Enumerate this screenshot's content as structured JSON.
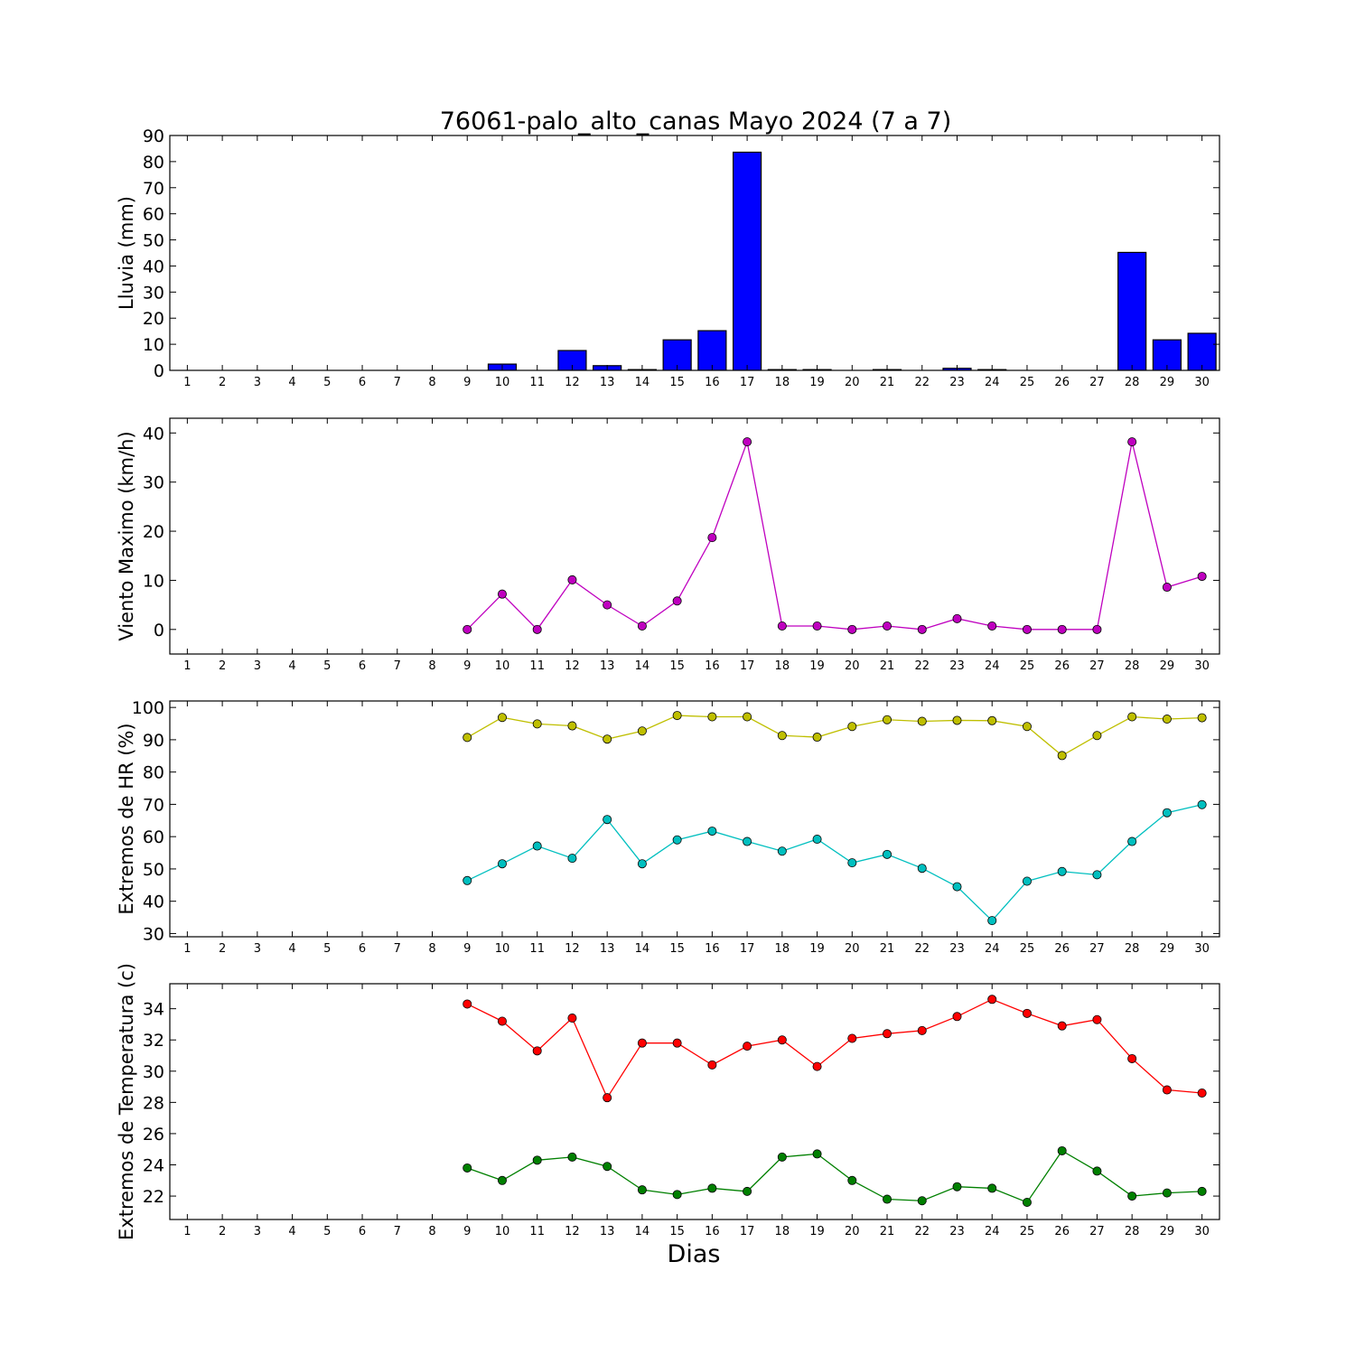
{
  "title": "76061-palo_alto_canas Mayo 2024  (7 a 7)",
  "xlabel": "Dias",
  "days": [
    1,
    2,
    3,
    4,
    5,
    6,
    7,
    8,
    9,
    10,
    11,
    12,
    13,
    14,
    15,
    16,
    17,
    18,
    19,
    20,
    21,
    22,
    23,
    24,
    25,
    26,
    27,
    28,
    29,
    30
  ],
  "chart_data": [
    {
      "type": "bar",
      "ylabel": "Lluvia (mm)",
      "ylim": [
        0,
        90
      ],
      "yticks": [
        0,
        10,
        20,
        30,
        40,
        50,
        60,
        70,
        80,
        90
      ],
      "x": [
        9,
        10,
        11,
        12,
        13,
        14,
        15,
        16,
        17,
        18,
        19,
        20,
        21,
        22,
        23,
        24,
        25,
        26,
        27,
        28,
        29,
        30
      ],
      "series": [
        {
          "color": "#0000ff",
          "values": [
            0.0,
            2.4,
            0.0,
            7.6,
            1.8,
            0.3,
            11.7,
            15.2,
            83.6,
            0.3,
            0.3,
            0.0,
            0.3,
            0.0,
            0.8,
            0.3,
            0.0,
            0.0,
            0.0,
            45.2,
            11.7,
            14.2
          ]
        }
      ]
    },
    {
      "type": "line",
      "ylabel": "Viento Maximo (km/h)",
      "ylim": [
        -5,
        43
      ],
      "yticks": [
        0,
        10,
        20,
        30,
        40
      ],
      "x": [
        9,
        10,
        11,
        12,
        13,
        14,
        15,
        16,
        17,
        18,
        19,
        20,
        21,
        22,
        23,
        24,
        25,
        26,
        27,
        28,
        29,
        30
      ],
      "series": [
        {
          "color": "#bf00bf",
          "values": [
            0.0,
            7.2,
            0.0,
            10.1,
            5.0,
            0.7,
            5.8,
            18.7,
            38.2,
            0.7,
            0.7,
            0.0,
            0.7,
            0.0,
            2.2,
            0.7,
            0.0,
            0.0,
            0.0,
            38.2,
            8.6,
            10.8
          ]
        }
      ]
    },
    {
      "type": "line",
      "ylabel": "Extremos de HR (%)",
      "ylim": [
        29,
        102
      ],
      "yticks": [
        30,
        40,
        50,
        60,
        70,
        80,
        90,
        100
      ],
      "x": [
        9,
        10,
        11,
        12,
        13,
        14,
        15,
        16,
        17,
        18,
        19,
        20,
        21,
        22,
        23,
        24,
        25,
        26,
        27,
        28,
        29,
        30
      ],
      "series": [
        {
          "color": "#bfbf00",
          "values": [
            90.7,
            96.9,
            94.9,
            94.3,
            90.2,
            92.7,
            97.5,
            97.1,
            97.1,
            91.3,
            90.8,
            94.1,
            96.2,
            95.7,
            96.0,
            95.9,
            94.1,
            85.1,
            91.3,
            97.1,
            96.4,
            96.8
          ]
        },
        {
          "color": "#00bfbf",
          "values": [
            46.4,
            51.6,
            57.1,
            53.3,
            65.3,
            51.6,
            59.0,
            61.7,
            58.5,
            55.5,
            59.2,
            51.9,
            54.5,
            50.2,
            44.5,
            34.0,
            46.2,
            49.2,
            48.2,
            58.5,
            67.4,
            69.9
          ]
        }
      ]
    },
    {
      "type": "line",
      "ylabel": "Extremos de Temperatura (c)",
      "ylim": [
        20.5,
        35.6
      ],
      "yticks": [
        22,
        24,
        26,
        28,
        30,
        32,
        34
      ],
      "x": [
        9,
        10,
        11,
        12,
        13,
        14,
        15,
        16,
        17,
        18,
        19,
        20,
        21,
        22,
        23,
        24,
        25,
        26,
        27,
        28,
        29,
        30
      ],
      "series": [
        {
          "color": "#ff0000",
          "values": [
            34.3,
            33.2,
            31.3,
            33.4,
            28.3,
            31.8,
            31.8,
            30.4,
            31.6,
            32.0,
            30.3,
            32.1,
            32.4,
            32.6,
            33.5,
            34.6,
            33.7,
            32.9,
            33.3,
            30.8,
            28.8,
            28.6
          ]
        },
        {
          "color": "#008000",
          "values": [
            23.8,
            23.0,
            24.3,
            24.5,
            23.9,
            22.4,
            22.1,
            22.5,
            22.3,
            24.5,
            24.7,
            23.0,
            21.8,
            21.7,
            22.6,
            22.5,
            21.6,
            24.9,
            23.6,
            22.0,
            22.2,
            22.3
          ]
        }
      ]
    }
  ]
}
